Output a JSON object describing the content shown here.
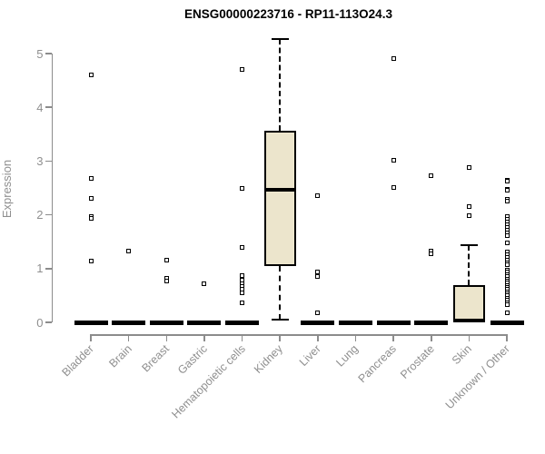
{
  "title": "ENSG00000223716 - RP11-113O24.3",
  "y_axis": {
    "label": "Expression",
    "ticks": [
      "0",
      "1",
      "2",
      "3",
      "4",
      "5"
    ],
    "min": 0,
    "max": 5
  },
  "style": {
    "box_fill": "#ece5cc",
    "box_stroke": "#000000",
    "axis_color": "#8c8c8c",
    "label_color": "#8f8f8f",
    "title_color": "#000000",
    "background": "#ffffff"
  },
  "chart_data": {
    "type": "boxplot",
    "title": "ENSG00000223716 - RP11-113O24.3",
    "xlabel": "",
    "ylabel": "Expression",
    "ylim": [
      0,
      5
    ],
    "grid": false,
    "categories": [
      "Bladder",
      "Brain",
      "Breast",
      "Gastric",
      "Hematopoietic cells",
      "Kidney",
      "Liver",
      "Lung",
      "Pancreas",
      "Prostate",
      "Skin",
      "Unknown / Other"
    ],
    "series": [
      {
        "name": "Bladder",
        "q1": 0,
        "median": 0,
        "q3": 0,
        "whisker_low": 0,
        "whisker_high": 0,
        "outliers": [
          4.6,
          2.67,
          2.3,
          1.97,
          1.93,
          1.14
        ]
      },
      {
        "name": "Brain",
        "q1": 0,
        "median": 0,
        "q3": 0,
        "whisker_low": 0,
        "whisker_high": 0,
        "outliers": [
          1.32
        ]
      },
      {
        "name": "Breast",
        "q1": 0,
        "median": 0,
        "q3": 0,
        "whisker_low": 0,
        "whisker_high": 0,
        "outliers": [
          1.15,
          0.82,
          0.77
        ]
      },
      {
        "name": "Gastric",
        "q1": 0,
        "median": 0,
        "q3": 0,
        "whisker_low": 0,
        "whisker_high": 0,
        "outliers": [
          0.71
        ]
      },
      {
        "name": "Hematopoietic cells",
        "q1": 0,
        "median": 0,
        "q3": 0,
        "whisker_low": 0,
        "whisker_high": 0,
        "outliers": [
          4.7,
          2.5,
          1.4,
          0.87,
          0.78,
          0.72,
          0.66,
          0.61,
          0.55,
          0.37
        ]
      },
      {
        "name": "Kidney",
        "q1": 1.05,
        "median": 2.47,
        "q3": 3.56,
        "whisker_low": 0.05,
        "whisker_high": 5.27,
        "outliers": []
      },
      {
        "name": "Liver",
        "q1": 0,
        "median": 0,
        "q3": 0,
        "whisker_low": 0,
        "whisker_high": 0,
        "outliers": [
          2.35,
          0.93,
          0.85,
          0.18
        ]
      },
      {
        "name": "Lung",
        "q1": 0,
        "median": 0,
        "q3": 0,
        "whisker_low": 0,
        "whisker_high": 0,
        "outliers": []
      },
      {
        "name": "Pancreas",
        "q1": 0,
        "median": 0,
        "q3": 0,
        "whisker_low": 0,
        "whisker_high": 0,
        "outliers": [
          4.9,
          3.02,
          2.51
        ]
      },
      {
        "name": "Prostate",
        "q1": 0,
        "median": 0,
        "q3": 0,
        "whisker_low": 0,
        "whisker_high": 0,
        "outliers": [
          2.72,
          1.33,
          1.28
        ]
      },
      {
        "name": "Skin",
        "q1": 0,
        "median": 0.03,
        "q3": 0.69,
        "whisker_low": 0,
        "whisker_high": 1.44,
        "outliers": [
          2.88,
          2.15,
          1.99
        ]
      },
      {
        "name": "Unknown / Other",
        "q1": 0,
        "median": 0,
        "q3": 0,
        "whisker_low": 0,
        "whisker_high": 0,
        "outliers": [
          2.65,
          2.62,
          2.48,
          2.45,
          2.29,
          2.26,
          1.97,
          1.92,
          1.87,
          1.82,
          1.77,
          1.72,
          1.67,
          1.62,
          1.48,
          1.31,
          1.26,
          1.21,
          1.16,
          1.11,
          1.07,
          0.97,
          0.93,
          0.89,
          0.85,
          0.81,
          0.77,
          0.73,
          0.69,
          0.65,
          0.61,
          0.57,
          0.53,
          0.49,
          0.45,
          0.41,
          0.37,
          0.33,
          0.17
        ]
      }
    ]
  }
}
